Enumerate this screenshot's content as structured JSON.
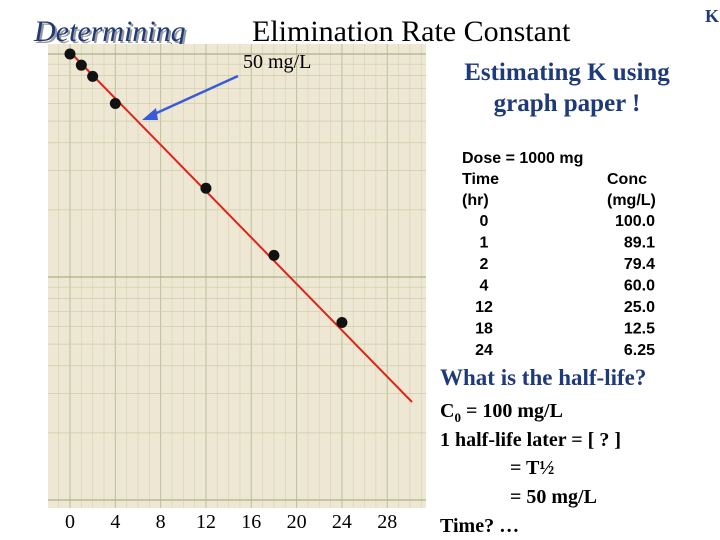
{
  "header": {
    "title_italic": "Determining",
    "title_rest": "Elimination Rate Constant",
    "corner": "K"
  },
  "graph": {
    "annotation": "50 mg/L",
    "x_labels": [
      0,
      4,
      8,
      12,
      16,
      20,
      24,
      28
    ]
  },
  "panel": {
    "heading_lines": [
      "Estimating K using",
      "graph paper !"
    ],
    "dose": "Dose = 1000 mg",
    "columns": [
      [
        "Time",
        "(hr)"
      ],
      [
        "Conc",
        "(mg/L)"
      ]
    ],
    "rows": [
      [
        "0",
        "100.0"
      ],
      [
        "1",
        "89.1"
      ],
      [
        "2",
        "79.4"
      ],
      [
        "4",
        "60.0"
      ],
      [
        "12",
        "25.0"
      ],
      [
        "18",
        "12.5"
      ],
      [
        "24",
        "6.25"
      ]
    ],
    "question": "What is the half-life?",
    "c0": {
      "symbol": "C",
      "subscript": "0",
      "text": " = 100 mg/L"
    },
    "lines": [
      "1 half-life later = [ ? ]",
      "= T½",
      "= 50 mg/L",
      "Time? …"
    ]
  }
}
